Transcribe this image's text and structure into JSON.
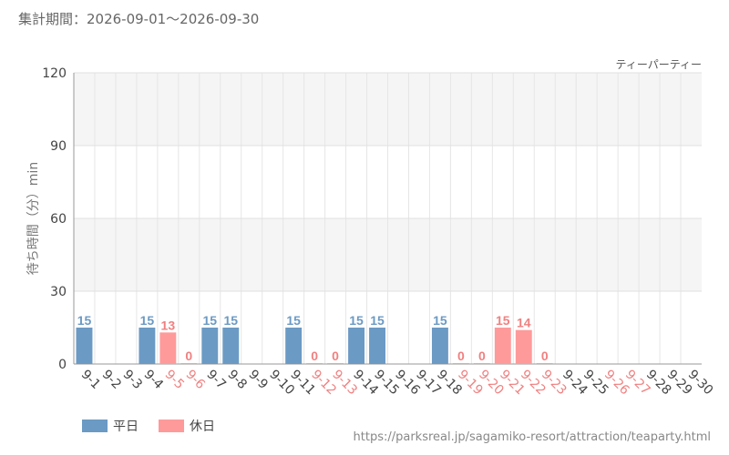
{
  "header": {
    "period": "集計期間：2026-09-01～2026-09-30"
  },
  "legend": {
    "weekday": "平日",
    "holiday": "休日"
  },
  "colors": {
    "weekday": "#6b9ac4",
    "holiday": "#ff9a9a",
    "holiday_text": "#f08080",
    "weekday_text": "#444444"
  },
  "footer": {
    "url": "https://parksreal.jp/sagamiko-resort/attraction/teaparty.html"
  },
  "chart_data": {
    "type": "bar",
    "title": "ティーパーティー",
    "xlabel": "",
    "ylabel": "待ち時間（分）min",
    "ylim": [
      0,
      120
    ],
    "yticks": [
      0,
      30,
      60,
      90,
      120
    ],
    "categories": [
      "9-1",
      "9-2",
      "9-3",
      "9-4",
      "9-5",
      "9-6",
      "9-7",
      "9-8",
      "9-9",
      "9-10",
      "9-11",
      "9-12",
      "9-13",
      "9-14",
      "9-15",
      "9-16",
      "9-17",
      "9-18",
      "9-19",
      "9-20",
      "9-21",
      "9-22",
      "9-23",
      "9-24",
      "9-25",
      "9-26",
      "9-27",
      "9-28",
      "9-29",
      "9-30"
    ],
    "values": [
      15,
      null,
      null,
      15,
      13,
      0,
      15,
      15,
      null,
      null,
      15,
      0,
      0,
      15,
      15,
      null,
      null,
      15,
      0,
      0,
      15,
      14,
      0,
      null,
      null,
      null,
      null,
      null,
      null,
      null
    ],
    "holiday": [
      false,
      false,
      false,
      false,
      true,
      true,
      false,
      false,
      false,
      false,
      false,
      true,
      true,
      false,
      false,
      false,
      false,
      false,
      true,
      true,
      true,
      true,
      true,
      false,
      false,
      true,
      true,
      false,
      false,
      false
    ],
    "grid": true,
    "legend_position": "bottom-left"
  }
}
